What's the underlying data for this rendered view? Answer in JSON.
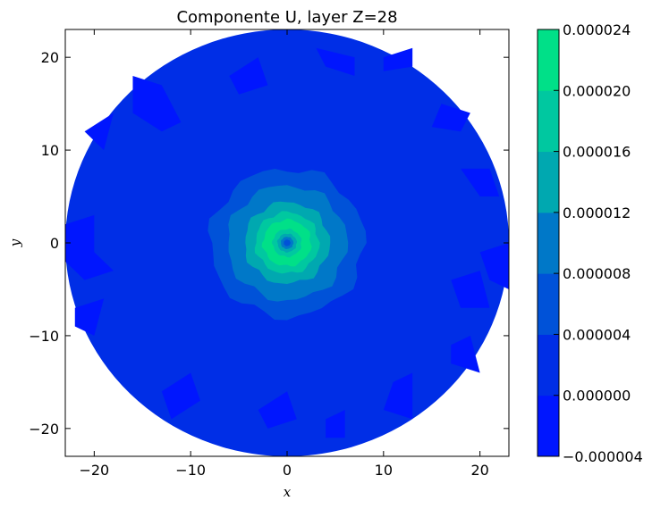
{
  "chart_data": {
    "type": "heatmap",
    "subtype": "filled-contour",
    "title": "Componente U, layer Z=28",
    "xlabel": "x",
    "ylabel": "y",
    "xlim": [
      -23,
      23
    ],
    "ylim": [
      -23,
      23
    ],
    "xticks": [
      -20,
      -10,
      0,
      10,
      20
    ],
    "yticks": [
      -20,
      -10,
      0,
      10,
      20
    ],
    "xtick_labels": [
      "−20",
      "−10",
      "0",
      "10",
      "20"
    ],
    "ytick_labels": [
      "−20",
      "−10",
      "0",
      "10",
      "20"
    ],
    "domain": {
      "shape": "circle",
      "center": [
        0,
        0
      ],
      "radius": 23
    },
    "grid": false,
    "colorbar": {
      "placement": "right",
      "levels": [
        -4e-06,
        0.0,
        4e-06,
        8e-06,
        1.2e-05,
        1.6e-05,
        2e-05,
        2.4e-05
      ],
      "level_labels": [
        "−0.000004",
        "0.000000",
        "0.000004",
        "0.000008",
        "0.000012",
        "0.000016",
        "0.000020",
        "0.000024"
      ],
      "colors": [
        "#0016fe",
        "#002ee6",
        "#0052d8",
        "#0078c8",
        "#00a8b0",
        "#00c8a0",
        "#00e088"
      ]
    },
    "field": {
      "background_band": 1,
      "rings": [
        {
          "band": 2,
          "radius": 8.0
        },
        {
          "band": 3,
          "radius": 6.2
        },
        {
          "band": 4,
          "radius": 4.4
        },
        {
          "band": 5,
          "radius": 3.3
        },
        {
          "band": 6,
          "radius": 2.5
        },
        {
          "band": 5,
          "radius": 1.5
        },
        {
          "band": 4,
          "radius": 1.0
        },
        {
          "band": 3,
          "radius": 0.65
        },
        {
          "band": 2,
          "radius": 0.35
        }
      ],
      "negative_patches": [
        {
          "points": [
            [
              -16,
              18
            ],
            [
              -13,
              17
            ],
            [
              -11,
              13
            ],
            [
              -13,
              12
            ],
            [
              -16,
              14
            ]
          ]
        },
        {
          "points": [
            [
              -6,
              18
            ],
            [
              -3,
              20
            ],
            [
              -2,
              17
            ],
            [
              -5,
              16
            ]
          ]
        },
        {
          "points": [
            [
              3,
              21
            ],
            [
              7,
              20
            ],
            [
              7,
              18
            ],
            [
              4,
              19
            ]
          ]
        },
        {
          "points": [
            [
              10,
              20
            ],
            [
              13,
              21
            ],
            [
              13,
              19
            ],
            [
              10,
              18.5
            ]
          ]
        },
        {
          "points": [
            [
              16,
              15
            ],
            [
              19,
              14
            ],
            [
              18,
              12
            ],
            [
              15,
              12.5
            ]
          ]
        },
        {
          "points": [
            [
              18,
              8
            ],
            [
              21,
              8
            ],
            [
              22,
              5
            ],
            [
              20,
              5
            ]
          ]
        },
        {
          "points": [
            [
              -21,
              12
            ],
            [
              -18,
              14
            ],
            [
              -19,
              10
            ]
          ]
        },
        {
          "points": [
            [
              -23,
              2
            ],
            [
              -20,
              3
            ],
            [
              -20,
              -1
            ],
            [
              -18,
              -3
            ],
            [
              -21,
              -4
            ],
            [
              -23,
              -2
            ]
          ]
        },
        {
          "points": [
            [
              20,
              -1
            ],
            [
              23,
              0
            ],
            [
              23,
              -5
            ],
            [
              21,
              -4
            ]
          ]
        },
        {
          "points": [
            [
              17,
              -4
            ],
            [
              20,
              -3
            ],
            [
              21,
              -7
            ],
            [
              18,
              -7
            ]
          ]
        },
        {
          "points": [
            [
              -22,
              -7
            ],
            [
              -19,
              -6
            ],
            [
              -20,
              -10
            ],
            [
              -22,
              -9
            ]
          ]
        },
        {
          "points": [
            [
              17,
              -11
            ],
            [
              19,
              -10
            ],
            [
              20,
              -14
            ],
            [
              17,
              -13
            ]
          ]
        },
        {
          "points": [
            [
              -13,
              -16
            ],
            [
              -10,
              -14
            ],
            [
              -9,
              -17
            ],
            [
              -12,
              -19
            ]
          ]
        },
        {
          "points": [
            [
              -3,
              -18
            ],
            [
              0,
              -16
            ],
            [
              1,
              -19
            ],
            [
              -2,
              -20
            ]
          ]
        },
        {
          "points": [
            [
              4,
              -19
            ],
            [
              6,
              -18
            ],
            [
              6,
              -21
            ],
            [
              4,
              -21
            ]
          ]
        },
        {
          "points": [
            [
              11,
              -15
            ],
            [
              13,
              -14
            ],
            [
              13,
              -19
            ],
            [
              10,
              -18
            ]
          ]
        }
      ]
    }
  }
}
